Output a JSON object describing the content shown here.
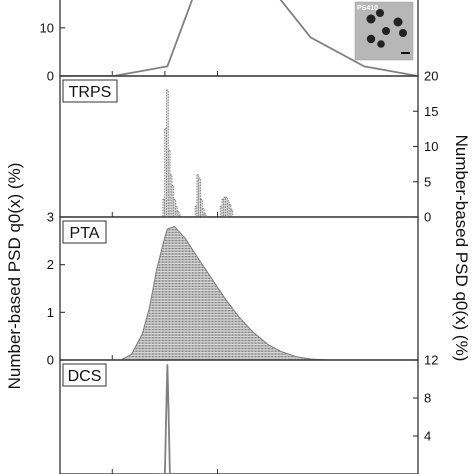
{
  "figure": {
    "left_axis_title": "Number-based PSD q0(x) (%)",
    "right_axis_title": "Number-based PSD q0(x) (%)",
    "inset_label": "PS410"
  },
  "chart_data": [
    {
      "type": "line",
      "panel": "top (cropped)",
      "label": "",
      "axis_side": "left",
      "yticks": [
        0,
        10
      ],
      "ylim": [
        0,
        22
      ],
      "x": [
        0,
        0.15,
        0.3,
        0.4,
        0.55,
        0.7,
        0.85,
        1.0
      ],
      "values": [
        0,
        0,
        2,
        22,
        22,
        8,
        2,
        0
      ],
      "color": "#808080",
      "inset": {
        "type": "image",
        "label": "PS410"
      }
    },
    {
      "type": "bar",
      "panel": "TRPS",
      "label": "TRPS",
      "axis_side": "right",
      "yticks": [
        0,
        5,
        10,
        15,
        20
      ],
      "ylim": [
        0,
        20
      ],
      "x": [
        0.29,
        0.295,
        0.3,
        0.305,
        0.31,
        0.315,
        0.32,
        0.325,
        0.33,
        0.335,
        0.38,
        0.385,
        0.39,
        0.395,
        0.4,
        0.405,
        0.45,
        0.455,
        0.46,
        0.465,
        0.47,
        0.475,
        0.48
      ],
      "values": [
        2.5,
        12.5,
        18,
        9.5,
        6,
        4.5,
        2.5,
        1.5,
        0.8,
        0.3,
        1.5,
        6,
        5.5,
        2.5,
        1.2,
        0.5,
        1.5,
        2.5,
        2.8,
        2.8,
        2.3,
        1.8,
        1.0
      ],
      "color": "#777777"
    },
    {
      "type": "area",
      "panel": "PTA",
      "label": "PTA",
      "axis_side": "left",
      "yticks": [
        0,
        1,
        2,
        3
      ],
      "ylim": [
        0,
        3
      ],
      "x": [
        0.17,
        0.2,
        0.23,
        0.25,
        0.27,
        0.29,
        0.3,
        0.32,
        0.35,
        0.38,
        0.42,
        0.46,
        0.5,
        0.54,
        0.58,
        0.62,
        0.66,
        0.7,
        0.75
      ],
      "values": [
        0,
        0.12,
        0.55,
        1.1,
        1.9,
        2.5,
        2.75,
        2.8,
        2.55,
        2.2,
        1.75,
        1.3,
        0.9,
        0.58,
        0.33,
        0.17,
        0.07,
        0.02,
        0
      ],
      "color": "#9a9a9a"
    },
    {
      "type": "line",
      "panel": "DCS",
      "label": "DCS",
      "axis_side": "right",
      "yticks": [
        4,
        8,
        12
      ],
      "ylim": [
        0,
        12
      ],
      "x": [
        0.28,
        0.293,
        0.297,
        0.3,
        0.303,
        0.307
      ],
      "values": [
        0,
        0,
        7,
        11.5,
        7,
        0
      ],
      "color": "#808080"
    }
  ]
}
